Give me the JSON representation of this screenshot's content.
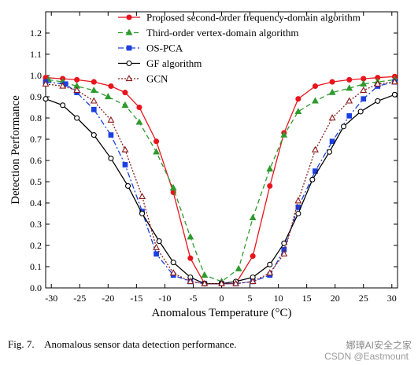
{
  "caption": {
    "figure_label": "Fig. 7.",
    "text": "Anomalous sensor data detection performance."
  },
  "watermark": {
    "line1": "娜璋AI安全之家",
    "line2": "CSDN @Eastmount"
  },
  "chart_data": {
    "type": "line",
    "xlabel": "Anomalous Temperature (°C)",
    "ylabel": "Detection Performance",
    "xlim": [
      -31,
      31
    ],
    "ylim": [
      0,
      1.3
    ],
    "x_ticks": [
      -30,
      -25,
      -20,
      -15,
      -10,
      -5,
      0,
      5,
      10,
      15,
      20,
      25,
      30
    ],
    "y_ticks": [
      0.0,
      0.1,
      0.2,
      0.3,
      0.4,
      0.5,
      0.6,
      0.7,
      0.8,
      0.9,
      1.0,
      1.1,
      1.2
    ],
    "grid": false,
    "legend_position": "top-right",
    "series": [
      {
        "name": "Proposed second-order frequency-domain algorithm",
        "color": "#e8141c",
        "line": "solid",
        "marker": "filled-circle",
        "x": [
          -31,
          -28,
          -25.5,
          -22.5,
          -19.5,
          -17,
          -14.5,
          -11.5,
          -8.5,
          -5.5,
          -3,
          0,
          2.5,
          5.5,
          8.5,
          11,
          13.5,
          16.5,
          19.5,
          22.5,
          25,
          27.5,
          30.5
        ],
        "y": [
          0.99,
          0.985,
          0.98,
          0.97,
          0.95,
          0.92,
          0.85,
          0.69,
          0.45,
          0.14,
          0.02,
          0.02,
          0.02,
          0.15,
          0.48,
          0.73,
          0.89,
          0.95,
          0.97,
          0.98,
          0.985,
          0.99,
          0.995
        ]
      },
      {
        "name": "Third-order vertex-domain algorithm",
        "color": "#2e9a2e",
        "line": "dashed",
        "marker": "filled-triangle",
        "x": [
          -30.5,
          -28,
          -25.5,
          -22.5,
          -20,
          -17,
          -14.5,
          -11.5,
          -8.5,
          -5.5,
          -3,
          0,
          3,
          5.5,
          8.5,
          11,
          13.5,
          16.5,
          19.5,
          22.5,
          25,
          27.5,
          30.5
        ],
        "y": [
          0.98,
          0.97,
          0.95,
          0.93,
          0.9,
          0.86,
          0.78,
          0.64,
          0.47,
          0.24,
          0.06,
          0.03,
          0.09,
          0.33,
          0.56,
          0.72,
          0.83,
          0.88,
          0.92,
          0.94,
          0.96,
          0.97,
          0.98
        ]
      },
      {
        "name": "OS-PCA",
        "color": "#1b3fe0",
        "line": "dashdot",
        "marker": "filled-square",
        "x": [
          -31,
          -27.5,
          -25.5,
          -22.5,
          -19.5,
          -17,
          -14,
          -11.5,
          -8.5,
          -5.5,
          -3,
          0,
          2.5,
          5.5,
          8.5,
          11,
          13.5,
          16.5,
          19.5,
          22.5,
          25,
          27.5,
          30.5
        ],
        "y": [
          0.97,
          0.96,
          0.92,
          0.84,
          0.72,
          0.58,
          0.36,
          0.16,
          0.06,
          0.03,
          0.02,
          0.02,
          0.02,
          0.03,
          0.06,
          0.18,
          0.38,
          0.55,
          0.69,
          0.81,
          0.89,
          0.95,
          0.97
        ]
      },
      {
        "name": "GF algorithm",
        "color": "#000000",
        "line": "solid",
        "marker": "open-circle",
        "x": [
          -31,
          -28,
          -25.5,
          -22.5,
          -19.5,
          -16.5,
          -14,
          -11,
          -8.5,
          -5.5,
          -3,
          0,
          2.5,
          5.5,
          8.5,
          11,
          13.5,
          16,
          19,
          21.5,
          24.5,
          27.5,
          30.5
        ],
        "y": [
          0.89,
          0.86,
          0.8,
          0.72,
          0.61,
          0.48,
          0.35,
          0.22,
          0.12,
          0.05,
          0.02,
          0.02,
          0.03,
          0.05,
          0.11,
          0.21,
          0.35,
          0.51,
          0.64,
          0.76,
          0.83,
          0.88,
          0.91
        ]
      },
      {
        "name": "GCN",
        "color": "#8b1a1a",
        "line": "dotted",
        "marker": "open-triangle",
        "x": [
          -31,
          -28,
          -25.5,
          -22.5,
          -19.5,
          -17,
          -14,
          -11.5,
          -8.5,
          -5.5,
          -3,
          0,
          2.5,
          5.5,
          8.5,
          11,
          13.5,
          16.5,
          19.5,
          22.5,
          25,
          27.5,
          30.5
        ],
        "y": [
          0.96,
          0.95,
          0.93,
          0.88,
          0.79,
          0.65,
          0.43,
          0.19,
          0.07,
          0.03,
          0.02,
          0.02,
          0.02,
          0.03,
          0.07,
          0.16,
          0.41,
          0.65,
          0.8,
          0.88,
          0.93,
          0.96,
          0.97
        ]
      }
    ]
  }
}
